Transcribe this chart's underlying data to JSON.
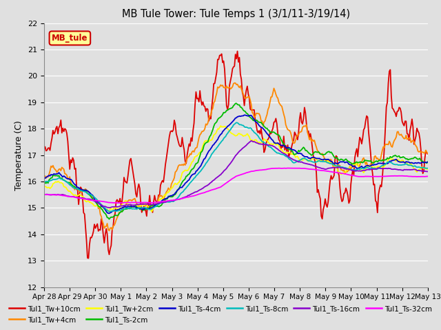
{
  "title": "MB Tule Tower: Tule Temps 1 (3/1/11-3/19/14)",
  "ylabel": "Temperature (C)",
  "ylim": [
    12.0,
    22.0
  ],
  "yticks": [
    12.0,
    13.0,
    14.0,
    15.0,
    16.0,
    17.0,
    18.0,
    19.0,
    20.0,
    21.0,
    22.0
  ],
  "background_color": "#e0e0e0",
  "plot_bg_color": "#e0e0e0",
  "grid_color": "#ffffff",
  "legend_label": "MB_tule",
  "legend_text_color": "#cc0000",
  "legend_box_facecolor": "#ffff99",
  "legend_box_edgecolor": "#cc0000",
  "series": [
    {
      "label": "Tul1_Tw+10cm",
      "color": "#dd0000",
      "lw": 1.3
    },
    {
      "label": "Tul1_Tw+4cm",
      "color": "#ff8800",
      "lw": 1.3
    },
    {
      "label": "Tul1_Tw+2cm",
      "color": "#ffff00",
      "lw": 1.3
    },
    {
      "label": "Tul1_Ts-2cm",
      "color": "#00bb00",
      "lw": 1.3
    },
    {
      "label": "Tul1_Ts-4cm",
      "color": "#0000cc",
      "lw": 1.3
    },
    {
      "label": "Tul1_Ts-8cm",
      "color": "#00bbbb",
      "lw": 1.3
    },
    {
      "label": "Tul1_Ts-16cm",
      "color": "#8800cc",
      "lw": 1.3
    },
    {
      "label": "Tul1_Ts-32cm",
      "color": "#ff00ff",
      "lw": 1.3
    }
  ],
  "x_tick_labels": [
    "Apr 28",
    "Apr 29",
    "Apr 30",
    "May 1",
    "May 2",
    "May 3",
    "May 4",
    "May 5",
    "May 6",
    "May 7",
    "May 8",
    "May 9",
    "May 10",
    "May 11",
    "May 12",
    "May 13"
  ],
  "figsize": [
    6.4,
    4.8
  ],
  "dpi": 100
}
